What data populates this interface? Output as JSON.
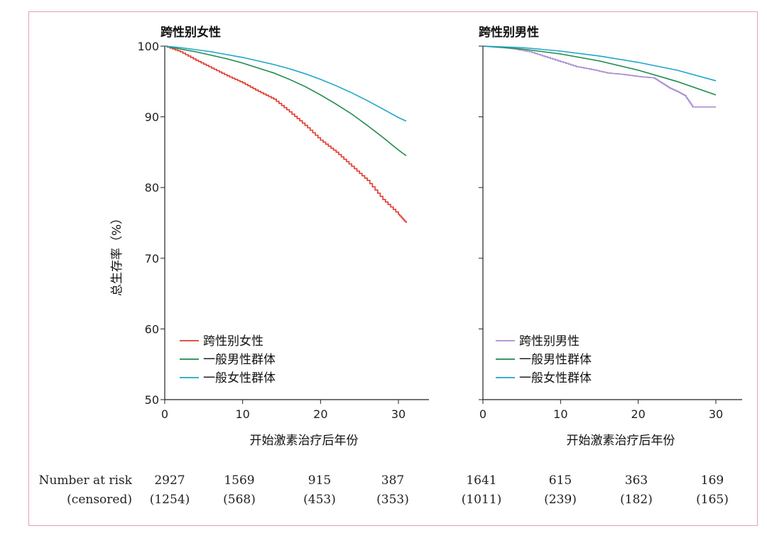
{
  "colors": {
    "trans_women": "#e03a2e",
    "general_men": "#1e8a4e",
    "general_women": "#1fa6c9",
    "trans_men": "#a98bd4",
    "frame_border": "#e6a0b0"
  },
  "chart_data": [
    {
      "type": "line",
      "title": "跨性别女性",
      "ylabel": "总生存率（%）",
      "xlabel": "开始激素治疗后年份",
      "xlim": [
        0,
        31
      ],
      "ylim": [
        50,
        100
      ],
      "xticks": [
        0,
        10,
        20,
        30
      ],
      "yticks": [
        50,
        60,
        70,
        80,
        90,
        100
      ],
      "legend_position": "bottom-left",
      "series": [
        {
          "name": "跨性别女性",
          "color_key": "trans_women",
          "step": true,
          "x": [
            0,
            2,
            4,
            6,
            8,
            10,
            12,
            14,
            16,
            18,
            20,
            22,
            24,
            26,
            28,
            30,
            31
          ],
          "y": [
            100,
            99.2,
            98,
            96.9,
            95.8,
            94.8,
            93.6,
            92.5,
            90.7,
            88.8,
            86.7,
            85,
            83,
            81,
            78.3,
            76.2,
            75
          ]
        },
        {
          "name": "一般男性群体",
          "color_key": "general_men",
          "step": false,
          "x": [
            0,
            2,
            4,
            6,
            8,
            10,
            12,
            14,
            16,
            18,
            20,
            22,
            24,
            26,
            28,
            30,
            31
          ],
          "y": [
            100,
            99.6,
            99.2,
            98.7,
            98.2,
            97.6,
            96.9,
            96.2,
            95.3,
            94.3,
            93.1,
            91.8,
            90.4,
            88.8,
            87.1,
            85.3,
            84.5
          ]
        },
        {
          "name": "一般女性群体",
          "color_key": "general_women",
          "step": false,
          "x": [
            0,
            2,
            4,
            6,
            8,
            10,
            12,
            14,
            16,
            18,
            20,
            22,
            24,
            26,
            28,
            30,
            31
          ],
          "y": [
            100,
            99.8,
            99.5,
            99.2,
            98.8,
            98.4,
            97.9,
            97.4,
            96.8,
            96.1,
            95.3,
            94.4,
            93.4,
            92.3,
            91.1,
            89.9,
            89.4
          ]
        }
      ],
      "number_at_risk": [
        "2927",
        "1569",
        "915",
        "387"
      ],
      "censored": [
        "(1254)",
        "(568)",
        "(453)",
        "(353)"
      ]
    },
    {
      "type": "line",
      "title": "跨性别男性",
      "xlabel": "开始激素治疗后年份",
      "xlim": [
        0,
        33
      ],
      "ylim": [
        50,
        100
      ],
      "xticks": [
        0,
        10,
        20,
        30
      ],
      "legend_position": "bottom-left",
      "series": [
        {
          "name": "跨性别男性",
          "color_key": "trans_men",
          "step": true,
          "x": [
            0,
            2,
            4,
            6,
            8,
            10,
            12,
            14,
            16,
            18,
            20,
            22,
            23,
            24,
            25,
            26,
            27,
            28,
            30
          ],
          "y": [
            100,
            99.9,
            99.6,
            99.2,
            98.5,
            97.8,
            97.1,
            96.7,
            96.2,
            96,
            95.7,
            95.5,
            94.8,
            94.1,
            93.6,
            93,
            91.4,
            91.4,
            91.4
          ]
        },
        {
          "name": "一般男性群体",
          "color_key": "general_men",
          "step": false,
          "x": [
            0,
            5,
            10,
            15,
            20,
            25,
            30
          ],
          "y": [
            100,
            99.6,
            98.9,
            97.9,
            96.6,
            95,
            93.1
          ]
        },
        {
          "name": "一般女性群体",
          "color_key": "general_women",
          "step": false,
          "x": [
            0,
            5,
            10,
            15,
            20,
            25,
            30
          ],
          "y": [
            100,
            99.8,
            99.3,
            98.6,
            97.7,
            96.6,
            95.1
          ]
        }
      ],
      "number_at_risk": [
        "1641",
        "615",
        "363",
        "169"
      ],
      "censored": [
        "(1011)",
        "(239)",
        "(182)",
        "(165)"
      ]
    }
  ],
  "risk_table": {
    "label_1": "Number at risk",
    "label_2": "(censored)"
  }
}
